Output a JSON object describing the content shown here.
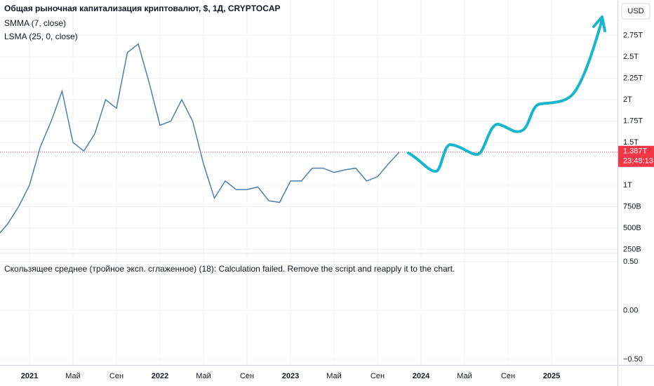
{
  "chart_data": {
    "type": "line",
    "title": "Общая рыночная капитализация криптовалют, $, 1Д, CRYPTOCAP",
    "indicators": [
      "SMMA (7, close)",
      "LSMA (25, 0, close)"
    ],
    "currency": "USD",
    "categories": [
      null,
      null,
      null,
      "2021",
      null,
      null,
      null,
      "Май",
      null,
      null,
      null,
      "Сен",
      null,
      null,
      null,
      "2022",
      null,
      null,
      null,
      "Май",
      null,
      null,
      null,
      "Сен",
      null,
      null,
      null,
      "2023",
      null,
      null,
      null,
      "Май",
      null,
      null,
      null,
      "Сен",
      null,
      null,
      null,
      "2024",
      null,
      null,
      null,
      "Май",
      null,
      null,
      null,
      "Сен",
      null,
      null,
      null,
      "2025",
      null,
      null,
      null,
      null,
      null,
      null
    ],
    "values": [
      400000000000.0,
      550000000000.0,
      750000000000.0,
      1000000000000.0,
      1450000000000.0,
      1750000000000.0,
      2100000000000.0,
      1500000000000.0,
      1400000000000.0,
      1600000000000.0,
      2000000000000.0,
      1900000000000.0,
      2550000000000.0,
      2650000000000.0,
      2200000000000.0,
      1700000000000.0,
      1750000000000.0,
      2000000000000.0,
      1750000000000.0,
      1250000000000.0,
      850000000000.0,
      1050000000000.0,
      950000000000.0,
      950000000000.0,
      980000000000.0,
      820000000000.0,
      800000000000.0,
      1050000000000.0,
      1050000000000.0,
      1200000000000.0,
      1200000000000.0,
      1150000000000.0,
      1180000000000.0,
      1200000000000.0,
      1050000000000.0,
      1100000000000.0,
      1250000000000.0,
      1387000000000.0,
      null,
      null,
      null,
      null,
      null,
      null,
      null,
      null,
      null,
      null,
      null,
      null,
      null,
      null,
      null,
      null,
      null,
      null,
      null,
      null
    ],
    "color": "#4f7ea8",
    "ylim": [
      213000000000,
      3164000000000
    ],
    "yticks": [
      {
        "value": 250000000000,
        "label": "250B"
      },
      {
        "value": 500000000000,
        "label": "500B"
      },
      {
        "value": 750000000000,
        "label": "750B"
      },
      {
        "value": 1000000000000,
        "label": "1T"
      },
      {
        "value": 1500000000000,
        "label": "1.5T"
      },
      {
        "value": 1750000000000,
        "label": "1.75T"
      },
      {
        "value": 2000000000000,
        "label": "2T"
      },
      {
        "value": 2250000000000,
        "label": "2.25T"
      },
      {
        "value": 2500000000000,
        "label": "2.5T"
      },
      {
        "value": 2750000000000,
        "label": "2.75T"
      }
    ],
    "last_price": {
      "value": 1387000000000,
      "label": "1.387T",
      "timer": "23:48:13"
    },
    "grid": true
  },
  "indicator_pane": {
    "message": "Скользящее среднее (тройное эксп. сглаженное) (18): Calculation failed. Remove the script and reapply it to the chart.",
    "ylim": [
      -0.558,
      0.58
    ],
    "yticks": [
      {
        "value": 0.5,
        "label": "0.50"
      },
      {
        "value": 0,
        "label": "0.00"
      },
      {
        "value": -0.5,
        "label": "−0.50"
      }
    ]
  }
}
